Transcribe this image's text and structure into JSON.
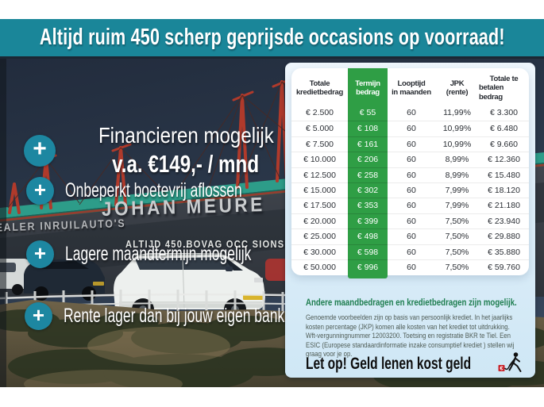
{
  "banner": {
    "text": "Altijd ruim 450 scherp geprijsde occasions op voorraad!",
    "bg_color": "#1a8699"
  },
  "usp": {
    "plus_icon": "+",
    "item1_line1": "Financieren mogelijk",
    "item1_line2": "v.a. €149,- / mnd",
    "item2": "Onbeperkt boetevrij aflossen",
    "item3": "Lagere maandtermijn mogelijk",
    "item4": "Rente lager dan bij jouw eigen bank"
  },
  "dealer_signage": {
    "sign_left": "DEALER INRUILAUTO'S",
    "sign_name": "JOHAN MEURE",
    "sign_sub": "ALTIJD 450 BOVAG OCC SIONS"
  },
  "finance_table": {
    "highlight_color": "#2f9e45",
    "columns": [
      {
        "line1": "Totale",
        "line2": "kredietbedrag"
      },
      {
        "line1": "Termijn",
        "line2": "bedrag"
      },
      {
        "line1": "Looptijd",
        "line2": "in maanden"
      },
      {
        "line1": "JPK",
        "line2": "(rente)"
      },
      {
        "line1": "Totale te",
        "line2": "betalen bedrag"
      }
    ],
    "rows": [
      [
        "€ 2.500",
        "€ 55",
        "60",
        "11,99%",
        "€ 3.300"
      ],
      [
        "€ 5.000",
        "€ 108",
        "60",
        "10,99%",
        "€ 6.480"
      ],
      [
        "€ 7.500",
        "€ 161",
        "60",
        "10,99%",
        "€ 9.660"
      ],
      [
        "€ 10.000",
        "€ 206",
        "60",
        "8,99%",
        "€ 12.360"
      ],
      [
        "€ 12.500",
        "€ 258",
        "60",
        "8,99%",
        "€ 15.480"
      ],
      [
        "€ 15.000",
        "€ 302",
        "60",
        "7,99%",
        "€ 18.120"
      ],
      [
        "€ 17.500",
        "€ 353",
        "60",
        "7,99%",
        "€ 21.180"
      ],
      [
        "€ 20.000",
        "€ 399",
        "60",
        "7,50%",
        "€ 23.940"
      ],
      [
        "€ 25.000",
        "€ 498",
        "60",
        "7,50%",
        "€ 29.880"
      ],
      [
        "€ 30.000",
        "€ 598",
        "60",
        "7,50%",
        "€ 35.880"
      ],
      [
        "€ 50.000",
        "€ 996",
        "60",
        "7,50%",
        "€ 59.760"
      ]
    ]
  },
  "disclaimer": {
    "heading": "Andere maandbedragen en kredietbedragen zijn mogelijk.",
    "body": "Genoemde voorbeelden zijn op basis van persoonlijk krediet. In het jaarlijks kosten percentage (JKP) komen alle kosten van het krediet tot uitdrukking. Wft-vergunningnummer 12003200. Toetsing en registratie BKR te Tiel. Een ESIC (Europese standaardinformatie inzake consumptief krediet ) stellen wij graag voor je op."
  },
  "warning": {
    "text": "Let op! Geld lenen kost geld"
  },
  "colors": {
    "banner_teal": "#1a8699",
    "plus_teal": "#1d87a1",
    "table_green": "#2f9e45",
    "panel_blue": "#d9ecf8",
    "heading_green": "#1f7e50"
  }
}
